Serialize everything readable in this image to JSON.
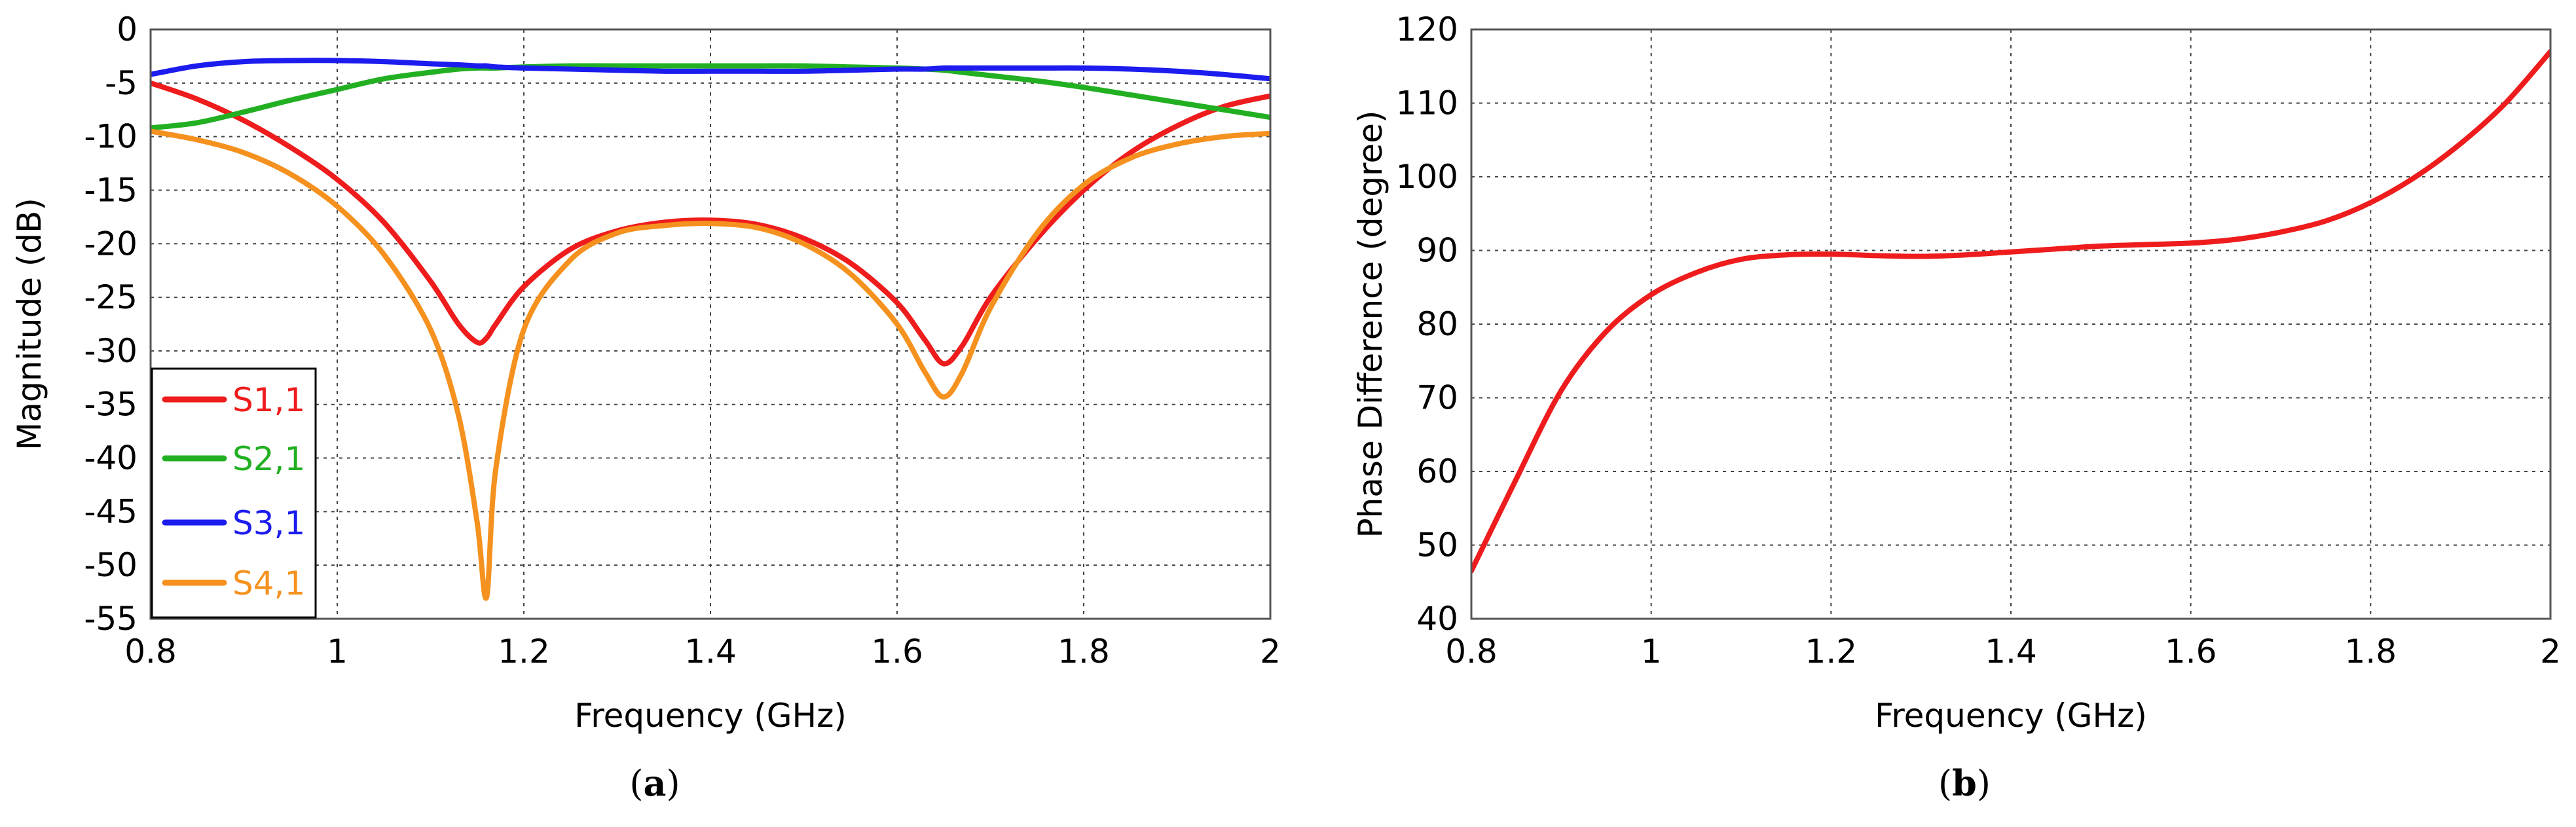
{
  "chart_data": [
    {
      "id": "a",
      "type": "line",
      "xlabel": "Frequency (GHz)",
      "ylabel": "Magnitude (dB)",
      "xlim": [
        0.8,
        2
      ],
      "ylim": [
        -55,
        0
      ],
      "xticks": [
        "0.8",
        "1",
        "1.2",
        "1.4",
        "1.6",
        "1.8",
        "2"
      ],
      "yticks": [
        "0",
        "-5",
        "-10",
        "-15",
        "-20",
        "-25",
        "-30",
        "-35",
        "-40",
        "-45",
        "-50",
        "-55"
      ],
      "grid": true,
      "legend_position": "bottom-left",
      "caption": {
        "open": "(",
        "letter": "a",
        "close": ")"
      },
      "x": [
        0.8,
        0.85,
        0.9,
        0.95,
        1.0,
        1.05,
        1.1,
        1.13,
        1.15,
        1.16,
        1.17,
        1.2,
        1.25,
        1.3,
        1.35,
        1.4,
        1.45,
        1.5,
        1.55,
        1.6,
        1.63,
        1.65,
        1.67,
        1.7,
        1.75,
        1.8,
        1.85,
        1.9,
        1.95,
        2.0
      ],
      "series": [
        {
          "name": "S1,1",
          "color": "#ee1c1c",
          "values": [
            -5.0,
            -6.5,
            -8.5,
            -11.0,
            -14.0,
            -18.0,
            -23.5,
            -27.5,
            -29.2,
            -28.8,
            -27.5,
            -24.0,
            -20.5,
            -18.8,
            -18.0,
            -17.8,
            -18.2,
            -19.5,
            -21.8,
            -25.5,
            -29.0,
            -31.2,
            -29.5,
            -25.0,
            -19.5,
            -15.0,
            -11.5,
            -9.0,
            -7.2,
            -6.2
          ]
        },
        {
          "name": "S2,1",
          "color": "#22b022",
          "values": [
            -9.2,
            -8.7,
            -7.7,
            -6.6,
            -5.6,
            -4.6,
            -4.0,
            -3.7,
            -3.6,
            -3.6,
            -3.6,
            -3.5,
            -3.4,
            -3.4,
            -3.4,
            -3.4,
            -3.4,
            -3.4,
            -3.5,
            -3.6,
            -3.7,
            -3.8,
            -4.0,
            -4.3,
            -4.8,
            -5.4,
            -6.1,
            -6.8,
            -7.5,
            -8.2
          ]
        },
        {
          "name": "S3,1",
          "color": "#1c1cee",
          "values": [
            -4.2,
            -3.4,
            -3.0,
            -2.9,
            -2.9,
            -3.0,
            -3.2,
            -3.3,
            -3.4,
            -3.4,
            -3.5,
            -3.6,
            -3.7,
            -3.8,
            -3.9,
            -3.9,
            -3.9,
            -3.9,
            -3.8,
            -3.7,
            -3.7,
            -3.6,
            -3.6,
            -3.6,
            -3.6,
            -3.6,
            -3.7,
            -3.9,
            -4.2,
            -4.6
          ]
        },
        {
          "name": "S4,1",
          "color": "#f5911e",
          "values": [
            -9.5,
            -10.3,
            -11.5,
            -13.5,
            -16.5,
            -21.0,
            -28.0,
            -36.0,
            -46.0,
            -53.0,
            -41.0,
            -28.0,
            -21.5,
            -19.0,
            -18.3,
            -18.1,
            -18.5,
            -20.0,
            -22.8,
            -27.5,
            -32.0,
            -34.3,
            -32.0,
            -26.0,
            -19.0,
            -14.5,
            -12.0,
            -10.7,
            -10.0,
            -9.7
          ]
        }
      ]
    },
    {
      "id": "b",
      "type": "line",
      "xlabel": "Frequency (GHz)",
      "ylabel": "Phase Difference (degree)",
      "xlim": [
        0.8,
        2
      ],
      "ylim": [
        40,
        120
      ],
      "xticks": [
        "0.8",
        "1",
        "1.2",
        "1.4",
        "1.6",
        "1.8",
        "2"
      ],
      "yticks": [
        "120",
        "110",
        "100",
        "90",
        "80",
        "70",
        "60",
        "50",
        "40"
      ],
      "grid": true,
      "caption": {
        "open": "(",
        "letter": "b",
        "close": ")"
      },
      "x": [
        0.8,
        0.85,
        0.9,
        0.95,
        1.0,
        1.05,
        1.1,
        1.15,
        1.2,
        1.25,
        1.3,
        1.35,
        1.4,
        1.45,
        1.5,
        1.55,
        1.6,
        1.65,
        1.7,
        1.75,
        1.8,
        1.85,
        1.9,
        1.95,
        2.0
      ],
      "series": [
        {
          "color": "#ee1c1c",
          "values": [
            46.5,
            59.0,
            71.0,
            79.0,
            84.0,
            87.0,
            88.8,
            89.4,
            89.5,
            89.3,
            89.2,
            89.4,
            89.8,
            90.2,
            90.6,
            90.8,
            91.0,
            91.5,
            92.5,
            94.0,
            96.5,
            100.0,
            104.5,
            110.0,
            117.0
          ]
        }
      ]
    }
  ]
}
